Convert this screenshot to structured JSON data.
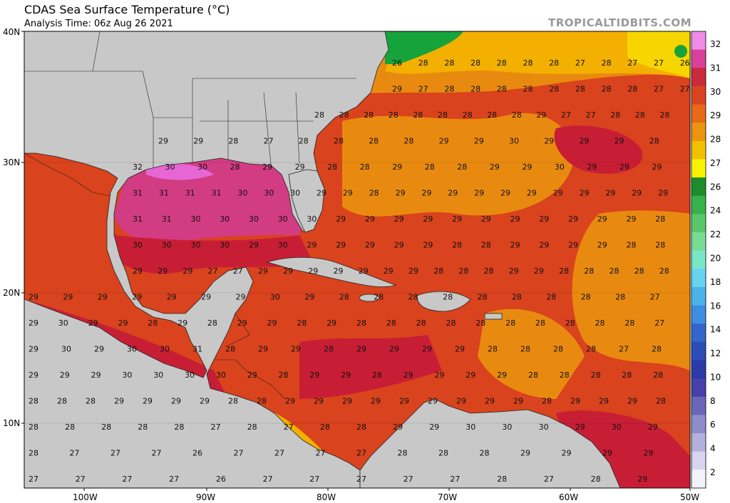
{
  "title": "CDAS Sea Surface Temperature (°C)",
  "subtitle": "Analysis Time: 06z Aug 26 2021",
  "brand": "TROPICALTIDBITS.COM",
  "axes": {
    "lat_labels": [
      "40N",
      "30N",
      "20N",
      "10N"
    ],
    "lon_labels": [
      "100W",
      "90W",
      "80W",
      "70W",
      "60W",
      "50W"
    ]
  },
  "colors": {
    "land": "#c8c8c8",
    "sst_26": "#f7d500",
    "sst_27": "#f3b000",
    "sst_28": "#e98a10",
    "sst_29": "#d9431d",
    "sst_30": "#c81e35",
    "sst_31": "#d23c82",
    "sst_32": "#e766d6",
    "cool": "#17a33c"
  },
  "colorbar": {
    "labels": [
      "32",
      "31",
      "30",
      "29",
      "28",
      "27",
      "26",
      "24",
      "22",
      "20",
      "18",
      "16",
      "14",
      "12",
      "10",
      "8",
      "6",
      "4",
      "2"
    ],
    "swatches": [
      "#f08ce8",
      "#d9409a",
      "#c92a3c",
      "#d84420",
      "#e76a14",
      "#eb9410",
      "#f3c000",
      "#fbf200",
      "#1e8c2a",
      "#35b24a",
      "#57c86a",
      "#79dc93",
      "#79e6c8",
      "#66d4f0",
      "#4ab4ea",
      "#3d8ee0",
      "#3366cc",
      "#2c4cb8",
      "#2b3aa8",
      "#4640a8",
      "#6c66b8",
      "#8f8ccc",
      "#b3b0dc",
      "#d6d4ee",
      "#f2f2fa"
    ]
  },
  "sst_labels": [
    [
      [
        26,
        28,
        28,
        28,
        28,
        28,
        28,
        27,
        28,
        27,
        27,
        26
      ],
      [
        29,
        27,
        28,
        28,
        28,
        28,
        28,
        28,
        28,
        28,
        27,
        27
      ]
    ],
    [
      28,
      28,
      28,
      28,
      28,
      28,
      28,
      28,
      28,
      29,
      27,
      27,
      28,
      28,
      28
    ],
    [
      29,
      29,
      28,
      27,
      28,
      28,
      28,
      28,
      29,
      29,
      30,
      29,
      29,
      29,
      28
    ],
    [
      32,
      30,
      30,
      28,
      29,
      29,
      28,
      28,
      29,
      28,
      28,
      29,
      29,
      30,
      29,
      29,
      29
    ],
    [
      31,
      31,
      31,
      31,
      30,
      30,
      30,
      29,
      29,
      28,
      29,
      29,
      29,
      29,
      29,
      29,
      29,
      29,
      29,
      29,
      29
    ],
    [
      31,
      31,
      30,
      30,
      30,
      30,
      30,
      29,
      29,
      29,
      29,
      29,
      29,
      29,
      29,
      29,
      29,
      29,
      28
    ],
    [
      30,
      30,
      30,
      30,
      29,
      30,
      29,
      29,
      29,
      29,
      29,
      28,
      28,
      29,
      29,
      29,
      29,
      28,
      28
    ],
    [
      29,
      29,
      29,
      27,
      27,
      29,
      29,
      29,
      29,
      29,
      29,
      29,
      28,
      28,
      28,
      29,
      29,
      28,
      28,
      28,
      28,
      28
    ],
    [
      29,
      29,
      29,
      29,
      29,
      29,
      29,
      30,
      29,
      28,
      28,
      28,
      28,
      28,
      28,
      28,
      28,
      28,
      27
    ],
    [
      29,
      30,
      29,
      29,
      28,
      29,
      28,
      29,
      29,
      28,
      29,
      28,
      28,
      28,
      28,
      28,
      28,
      28,
      28,
      28,
      28,
      27
    ],
    [
      29,
      30,
      29,
      30,
      30,
      31,
      28,
      29,
      29,
      28,
      29,
      29,
      29,
      29,
      28,
      28,
      28,
      28,
      27,
      28
    ],
    [
      29,
      29,
      29,
      30,
      30,
      30,
      30,
      29,
      28,
      29,
      29,
      28,
      29,
      29,
      29,
      29,
      28,
      28,
      28,
      28,
      28
    ],
    [
      28,
      28,
      28,
      29,
      29,
      29,
      29,
      28,
      28,
      29,
      29,
      29,
      29,
      29,
      29,
      29,
      29,
      29,
      28,
      29,
      29,
      29,
      28
    ],
    [
      28,
      28,
      28,
      28,
      28,
      27,
      28,
      27,
      28,
      28,
      29,
      29,
      30,
      30,
      30,
      29,
      30,
      29
    ],
    [
      28,
      27,
      27,
      27,
      26,
      27,
      27,
      27,
      27,
      28,
      28,
      28,
      29,
      29,
      29,
      29
    ],
    [
      27,
      27,
      27,
      27,
      26,
      27,
      27,
      27,
      27,
      27,
      28,
      27,
      28,
      29
    ]
  ]
}
